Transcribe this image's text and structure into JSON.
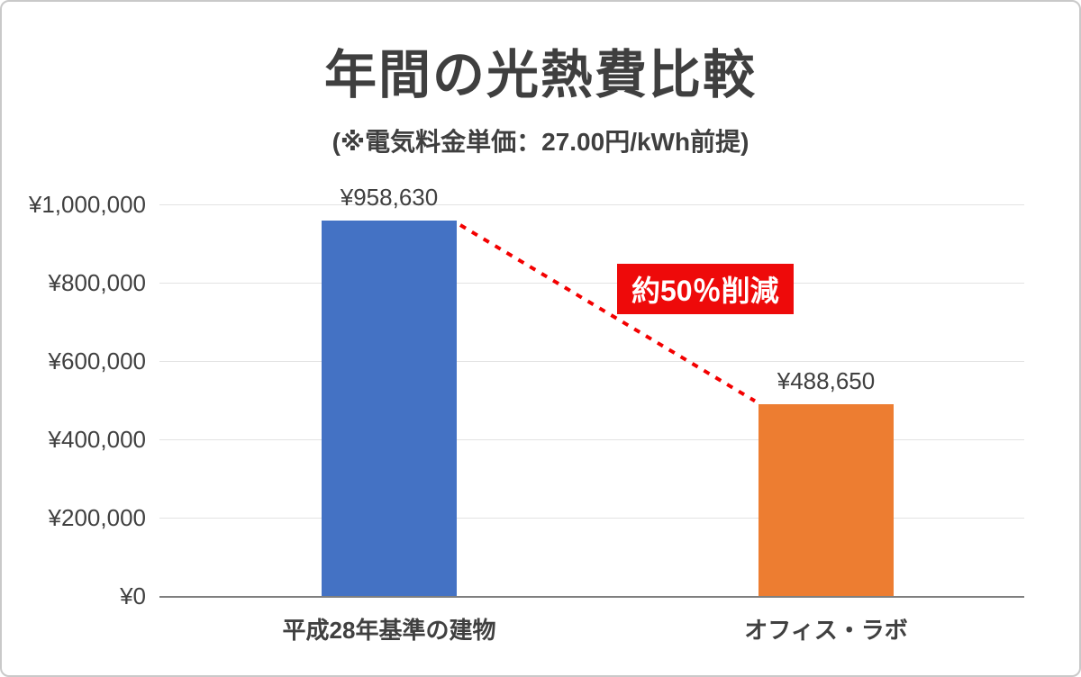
{
  "page": {
    "title": "年間の光熱費比較",
    "subtitle": "(※電気料金単価：27.00円/kWh前提)"
  },
  "chart_data": {
    "type": "bar",
    "title": "年間の光熱費比較",
    "subtitle": "(※電気料金単価：27.00円/kWh前提)",
    "categories": [
      "平成28年基準の建物",
      "オフィス・ラボ"
    ],
    "values": [
      958630,
      488650
    ],
    "value_labels": [
      "¥958,630",
      "¥488,650"
    ],
    "bar_colors": [
      "#4472c4",
      "#ed7d31"
    ],
    "ylim": [
      0,
      1000000
    ],
    "ytick_step": 200000,
    "ytick_labels": [
      "¥0",
      "¥200,000",
      "¥400,000",
      "¥600,000",
      "¥800,000",
      "¥1,000,000"
    ],
    "grid": true,
    "legend": "none",
    "annotation": {
      "label": "約50％削減",
      "badge_color": "#ee0a0a",
      "text_color": "#ffffff",
      "line_color": "#f30000",
      "line_style": "dotted"
    }
  }
}
